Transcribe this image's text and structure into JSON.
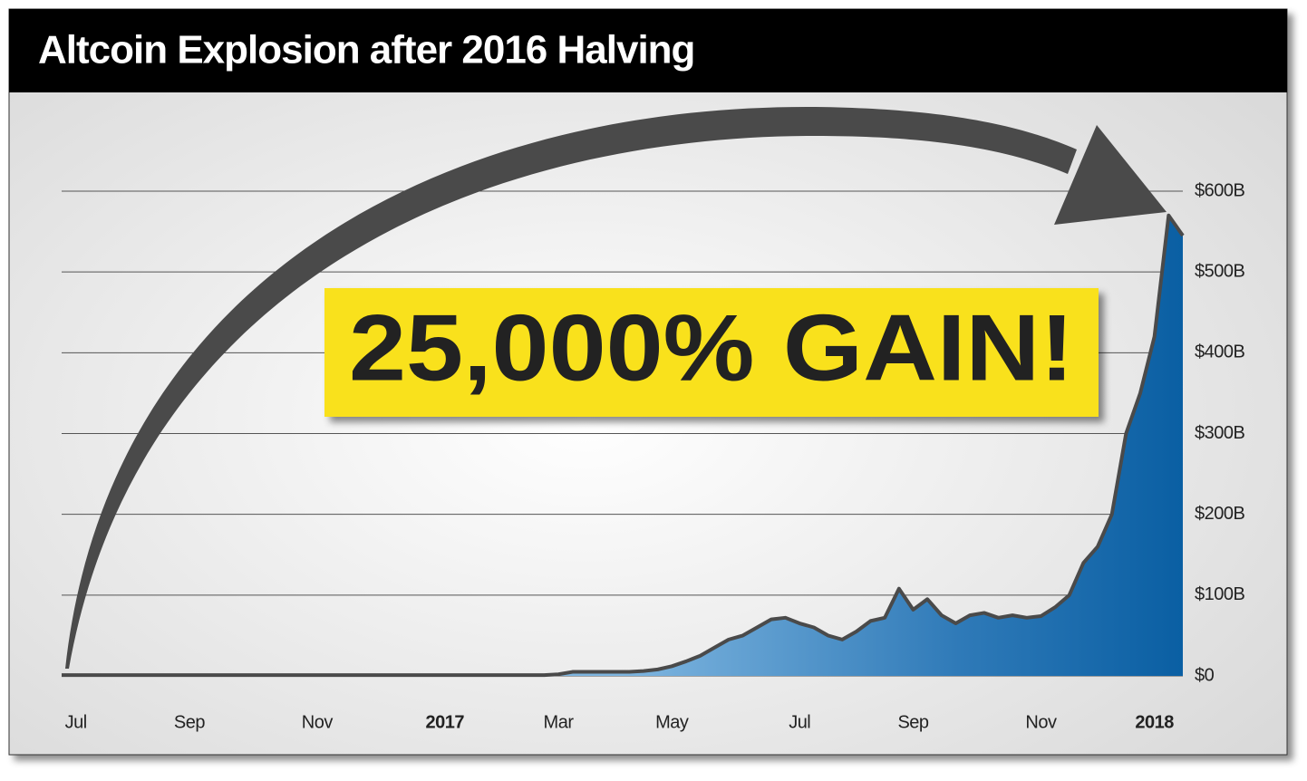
{
  "chart_data": {
    "type": "area",
    "title": "Altcoin Explosion after 2016 Halving",
    "annotation": "25,000% GAIN!",
    "categories": [
      null,
      "Jul",
      null,
      null,
      null,
      null,
      null,
      null,
      null,
      "Sep",
      null,
      null,
      null,
      null,
      null,
      null,
      null,
      null,
      "Nov",
      null,
      null,
      null,
      null,
      null,
      null,
      null,
      null,
      "2017",
      null,
      null,
      null,
      null,
      null,
      null,
      null,
      "Mar",
      null,
      null,
      null,
      null,
      null,
      null,
      null,
      "May",
      null,
      null,
      null,
      null,
      null,
      null,
      null,
      null,
      "Jul",
      null,
      null,
      null,
      null,
      null,
      null,
      null,
      "Sep",
      null,
      null,
      null,
      null,
      null,
      null,
      null,
      null,
      "Nov",
      null,
      null,
      null,
      null,
      null,
      null,
      null,
      "2018",
      null,
      null
    ],
    "values": [
      1,
      1,
      1,
      1,
      1,
      1,
      1,
      1,
      1,
      1,
      1,
      1,
      1,
      1,
      1,
      1,
      1,
      1,
      1,
      1,
      1,
      1,
      1,
      1,
      1,
      1,
      1,
      1,
      1,
      1,
      1,
      1,
      1,
      1,
      1,
      2,
      5,
      5,
      5,
      5,
      5,
      6,
      8,
      12,
      18,
      25,
      35,
      45,
      50,
      60,
      70,
      72,
      65,
      60,
      50,
      45,
      55,
      68,
      72,
      108,
      82,
      95,
      75,
      65,
      75,
      78,
      72,
      75,
      72,
      74,
      85,
      100,
      140,
      160,
      200,
      300,
      350,
      420,
      570,
      545
    ],
    "line_color": "#4a4a4a",
    "color": "#0a5fa3",
    "ylim": [
      0,
      600
    ],
    "yticks": [
      {
        "value": 0,
        "label": "$0"
      },
      {
        "value": 100,
        "label": "$100B"
      },
      {
        "value": 200,
        "label": "$200B"
      },
      {
        "value": 300,
        "label": "$300B"
      },
      {
        "value": 400,
        "label": "$400B"
      },
      {
        "value": 500,
        "label": "$500B"
      },
      {
        "value": 600,
        "label": "$600B"
      }
    ],
    "grid": true
  }
}
